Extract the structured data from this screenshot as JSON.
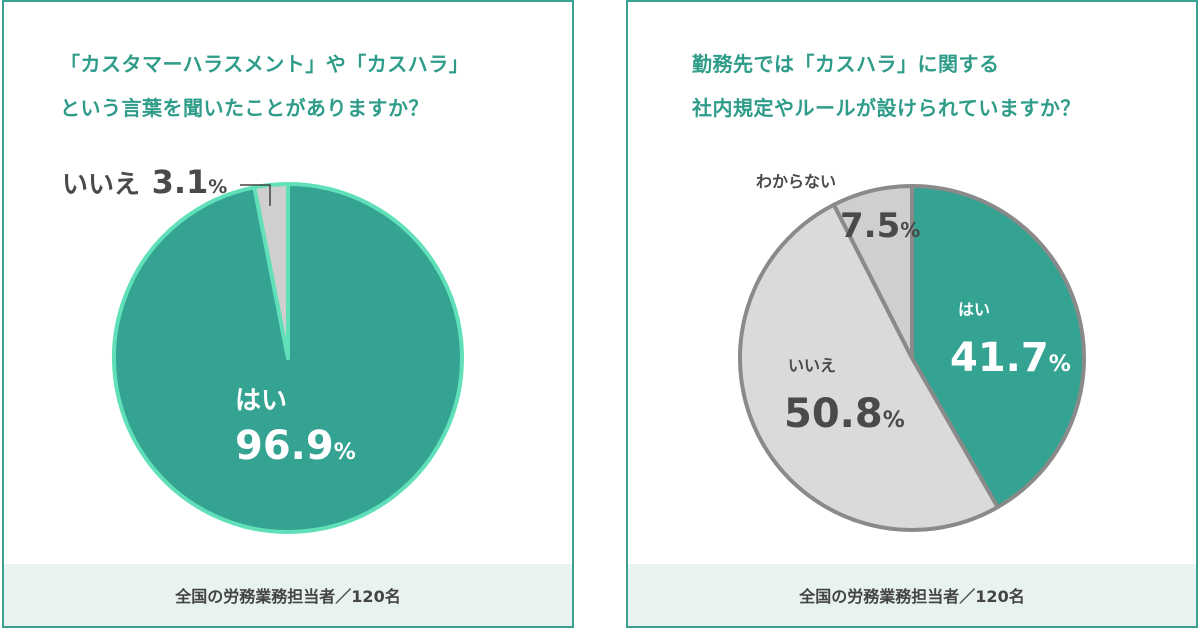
{
  "colors": {
    "teal": "#34a392",
    "teal_border": "#5fe0b8",
    "gray": "#cfcfcf",
    "gray_light": "#dadada",
    "gray_border": "#8a8a8a",
    "accent_text": "#2f9c8a"
  },
  "chart_data": [
    {
      "type": "pie",
      "title": [
        "「カスタマーハラスメント」や「カスハラ」",
        "という言葉を聞いたことがありますか？"
      ],
      "note": "全国の労務業務担当者／120名",
      "slices": [
        {
          "label": "はい",
          "value": 96.9,
          "value_label": "96.9",
          "unit": "%"
        },
        {
          "label": "いいえ",
          "value": 3.1,
          "value_label": "3.1",
          "unit": "%"
        }
      ]
    },
    {
      "type": "pie",
      "title": [
        "勤務先では「カスハラ」に関する",
        "社内規定やルールが設けられていますか？"
      ],
      "note": "全国の労務業務担当者／120名",
      "slices": [
        {
          "label": "はい",
          "value": 41.7,
          "value_label": "41.7",
          "unit": "%"
        },
        {
          "label": "いいえ",
          "value": 50.8,
          "value_label": "50.8",
          "unit": "%"
        },
        {
          "label": "わからない",
          "value": 7.5,
          "value_label": "7.5",
          "unit": "%"
        }
      ]
    }
  ]
}
